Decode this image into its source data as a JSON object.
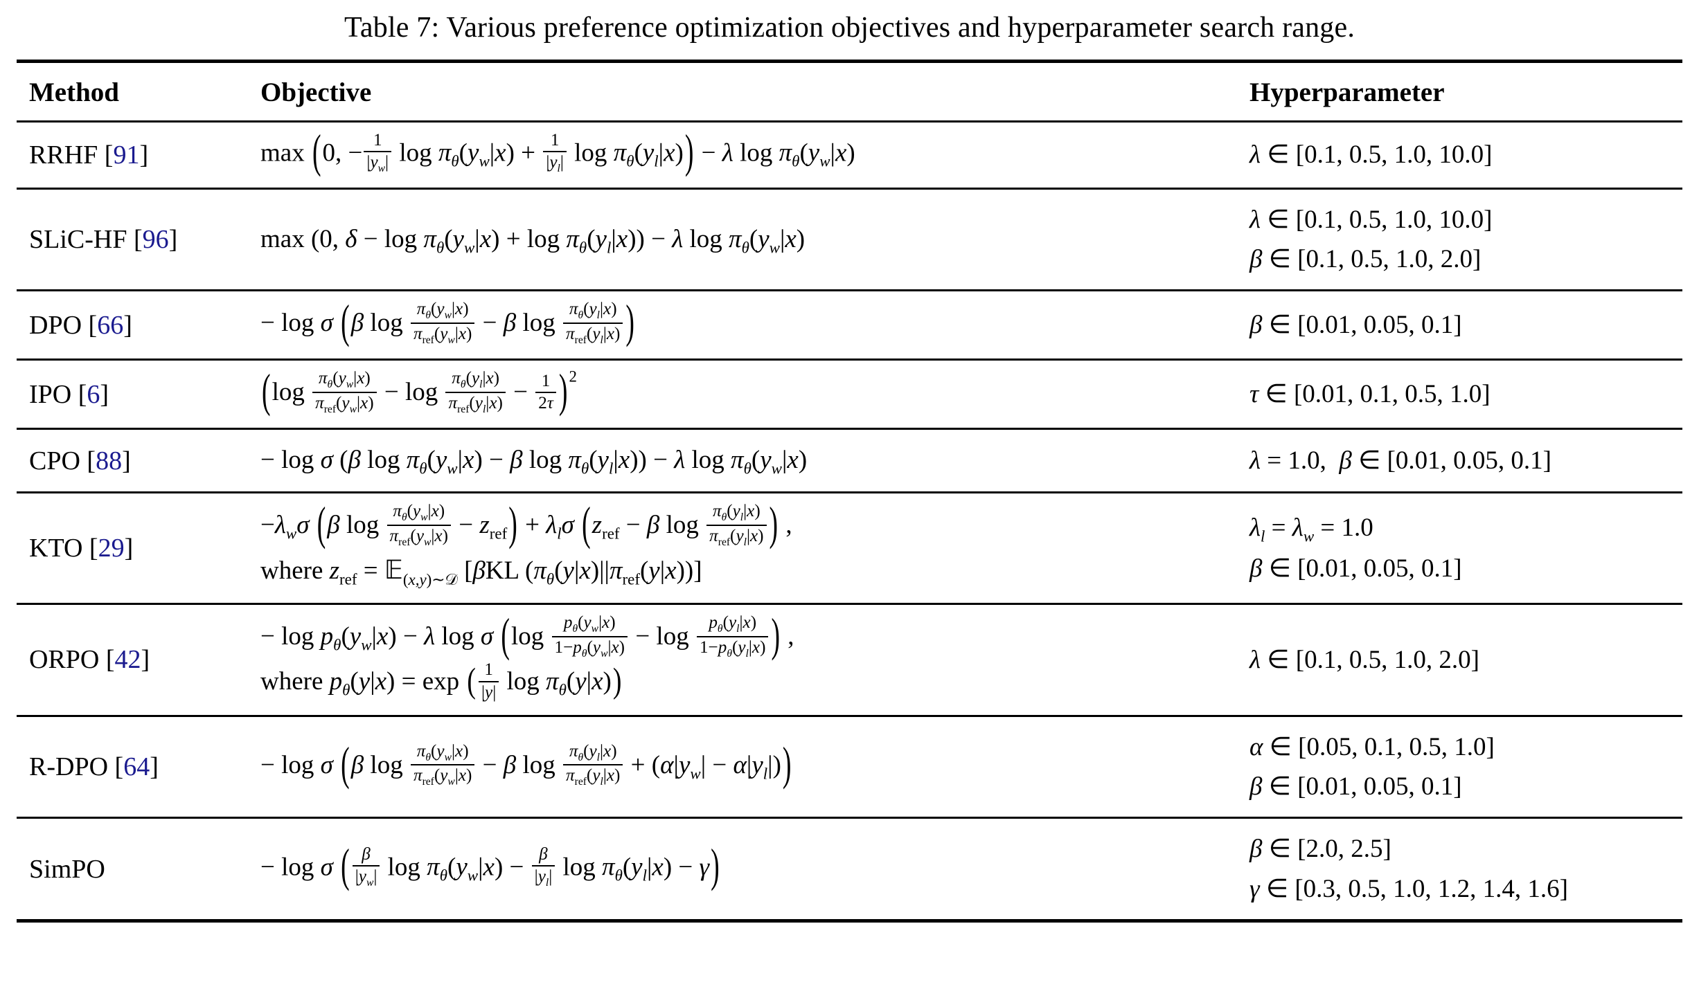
{
  "title": "Table 7: Various preference optimization objectives and hyperparameter search range.",
  "colors": {
    "citation": "#1b1b8f",
    "rule": "#000000"
  },
  "table": {
    "columns": [
      "Method",
      "Objective",
      "Hyperparameter"
    ],
    "rows": [
      {
        "method": "RRHF",
        "ref": "91",
        "objective_html": [
          "max <span class='bp'>(</span>0, −<span class='fr'><span class='nu'>1</span><span class='de'>|<i>y<sub>w</sub></i>|</span></span> log <i>π<sub>θ</sub></i>(<i>y<sub>w</sub></i>|<i>x</i>) + <span class='fr'><span class='nu'>1</span><span class='de'>|<i>y<sub>l</sub></i>|</span></span> log <i>π<sub>θ</sub></i>(<i>y<sub>l</sub></i>|<i>x</i>)<span class='bp'>)</span> − <i>λ</i> log <i>π<sub>θ</sub></i>(<i>y<sub>w</sub></i>|<i>x</i>)"
        ],
        "hyper_html": [
          "<i>λ</i> ∈ [0.1, 0.5, 1.0, 10.0]"
        ]
      },
      {
        "method": "SLiC-HF",
        "ref": "96",
        "objective_html": [
          "max (0, <i>δ</i> − log <i>π<sub>θ</sub></i>(<i>y<sub>w</sub></i>|<i>x</i>) + log <i>π<sub>θ</sub></i>(<i>y<sub>l</sub></i>|<i>x</i>)) − <i>λ</i> log <i>π<sub>θ</sub></i>(<i>y<sub>w</sub></i>|<i>x</i>)"
        ],
        "hyper_html": [
          "<i>λ</i> ∈ [0.1, 0.5, 1.0, 10.0]",
          "<i>β</i> ∈ [0.1, 0.5, 1.0, 2.0]"
        ]
      },
      {
        "method": "DPO",
        "ref": "66",
        "objective_html": [
          "− log <i>σ</i> <span class='bp'>(</span><i>β</i> log <span class='fr'><span class='nu'><i>π<sub>θ</sub></i>(<i>y<sub>w</sub></i>|<i>x</i>)</span><span class='de'><i>π</i><sub>ref</sub>(<i>y<sub>w</sub></i>|<i>x</i>)</span></span> − <i>β</i> log <span class='fr'><span class='nu'><i>π<sub>θ</sub></i>(<i>y<sub>l</sub></i>|<i>x</i>)</span><span class='de'><i>π</i><sub>ref</sub>(<i>y<sub>l</sub></i>|<i>x</i>)</span></span><span class='bp'>)</span>"
        ],
        "hyper_html": [
          "<i>β</i> ∈ [0.01, 0.05, 0.1]"
        ]
      },
      {
        "method": "IPO",
        "ref": "6",
        "objective_html": [
          "<span class='bp'>(</span>log <span class='fr'><span class='nu'><i>π<sub>θ</sub></i>(<i>y<sub>w</sub></i>|<i>x</i>)</span><span class='de'><i>π</i><sub>ref</sub>(<i>y<sub>w</sub></i>|<i>x</i>)</span></span> − log <span class='fr'><span class='nu'><i>π<sub>θ</sub></i>(<i>y<sub>l</sub></i>|<i>x</i>)</span><span class='de'><i>π</i><sub>ref</sub>(<i>y<sub>l</sub></i>|<i>x</i>)</span></span> − <span class='fr'><span class='nu'>1</span><span class='de'>2<i>τ</i></span></span><span class='bp'>)</span><sup class='hi'>2</sup>"
        ],
        "hyper_html": [
          "<i>τ</i> ∈ [0.01, 0.1, 0.5, 1.0]"
        ]
      },
      {
        "method": "CPO",
        "ref": "88",
        "objective_html": [
          "− log <i>σ</i> (<i>β</i> log <i>π<sub>θ</sub></i>(<i>y<sub>w</sub></i>|<i>x</i>) − <i>β</i> log <i>π<sub>θ</sub></i>(<i>y<sub>l</sub></i>|<i>x</i>)) − <i>λ</i> log <i>π<sub>θ</sub></i>(<i>y<sub>w</sub></i>|<i>x</i>)"
        ],
        "hyper_html": [
          "<i>λ</i> = 1.0, &nbsp;<i>β</i> ∈ [0.01, 0.05, 0.1]"
        ]
      },
      {
        "method": "KTO",
        "ref": "29",
        "objective_html": [
          "−<i>λ<sub>w</sub></i><i>σ</i> <span class='bp'>(</span><i>β</i> log <span class='fr'><span class='nu'><i>π<sub>θ</sub></i>(<i>y<sub>w</sub></i>|<i>x</i>)</span><span class='de'><i>π</i><sub>ref</sub>(<i>y<sub>w</sub></i>|<i>x</i>)</span></span> − <i>z</i><sub>ref</sub><span class='bp'>)</span> + <i>λ<sub>l</sub></i><i>σ</i> <span class='bp'>(</span><i>z</i><sub>ref</sub> − <i>β</i> log <span class='fr'><span class='nu'><i>π<sub>θ</sub></i>(<i>y<sub>l</sub></i>|<i>x</i>)</span><span class='de'><i>π</i><sub>ref</sub>(<i>y<sub>l</sub></i>|<i>x</i>)</span></span><span class='bp'>)</span> ,",
          "where <i>z</i><sub>ref</sub> = <span class='msym'>𝔼</span><sub>(<i>x,y</i>)∼<span class='msym'>𝒟</span></sub> [<i>β</i>KL (<i>π<sub>θ</sub></i>(<i>y</i>|<i>x</i>)||<i>π</i><sub>ref</sub>(<i>y</i>|<i>x</i>))]"
        ],
        "hyper_html": [
          "<i>λ<sub>l</sub></i> = <i>λ<sub>w</sub></i> = 1.0",
          "<i>β</i> ∈ [0.01, 0.05, 0.1]"
        ]
      },
      {
        "method": "ORPO",
        "ref": "42",
        "objective_html": [
          "− log <i>p<sub>θ</sub></i>(<i>y<sub>w</sub></i>|<i>x</i>) − <i>λ</i> log <i>σ</i> <span class='bp'>(</span>log <span class='fr'><span class='nu'><i>p<sub>θ</sub></i>(<i>y<sub>w</sub></i>|<i>x</i>)</span><span class='de'>1−<i>p<sub>θ</sub></i>(<i>y<sub>w</sub></i>|<i>x</i>)</span></span> − log <span class='fr'><span class='nu'><i>p<sub>θ</sub></i>(<i>y<sub>l</sub></i>|<i>x</i>)</span><span class='de'>1−<i>p<sub>θ</sub></i>(<i>y<sub>l</sub></i>|<i>x</i>)</span></span><span class='bp'>)</span> ,",
          "where <i>p<sub>θ</sub></i>(<i>y</i>|<i>x</i>) = exp <span class='bp md'>(</span><span class='fr'><span class='nu'>1</span><span class='de'>|<i>y</i>|</span></span> log <i>π<sub>θ</sub></i>(<i>y</i>|<i>x</i>)<span class='bp md'>)</span>"
        ],
        "hyper_html": [
          "<i>λ</i> ∈ [0.1, 0.5, 1.0, 2.0]"
        ]
      },
      {
        "method": "R-DPO",
        "ref": "64",
        "objective_html": [
          "− log <i>σ</i> <span class='bp'>(</span><i>β</i> log <span class='fr'><span class='nu'><i>π<sub>θ</sub></i>(<i>y<sub>w</sub></i>|<i>x</i>)</span><span class='de'><i>π</i><sub>ref</sub>(<i>y<sub>w</sub></i>|<i>x</i>)</span></span> − <i>β</i> log <span class='fr'><span class='nu'><i>π<sub>θ</sub></i>(<i>y<sub>l</sub></i>|<i>x</i>)</span><span class='de'><i>π</i><sub>ref</sub>(<i>y<sub>l</sub></i>|<i>x</i>)</span></span> + (<i>α</i>|<i>y<sub>w</sub></i>| − <i>α</i>|<i>y<sub>l</sub></i>|)<span class='bp'>)</span>"
        ],
        "hyper_html": [
          "<i>α</i> ∈ [0.05, 0.1, 0.5, 1.0]",
          "<i>β</i> ∈ [0.01, 0.05, 0.1]"
        ]
      },
      {
        "method": "SimPO",
        "ref": null,
        "objective_html": [
          "− log <i>σ</i> <span class='bp'>(</span><span class='fr'><span class='nu'><i>β</i></span><span class='de'>|<i>y<sub>w</sub></i>|</span></span> log <i>π<sub>θ</sub></i>(<i>y<sub>w</sub></i>|<i>x</i>) − <span class='fr'><span class='nu'><i>β</i></span><span class='de'>|<i>y<sub>l</sub></i>|</span></span> log <i>π<sub>θ</sub></i>(<i>y<sub>l</sub></i>|<i>x</i>) − <i>γ</i><span class='bp'>)</span>"
        ],
        "hyper_html": [
          "<i>β</i> ∈ [2.0, 2.5]",
          "<i>γ</i> ∈ [0.3, 0.5, 1.0, 1.2, 1.4, 1.6]"
        ]
      }
    ]
  }
}
